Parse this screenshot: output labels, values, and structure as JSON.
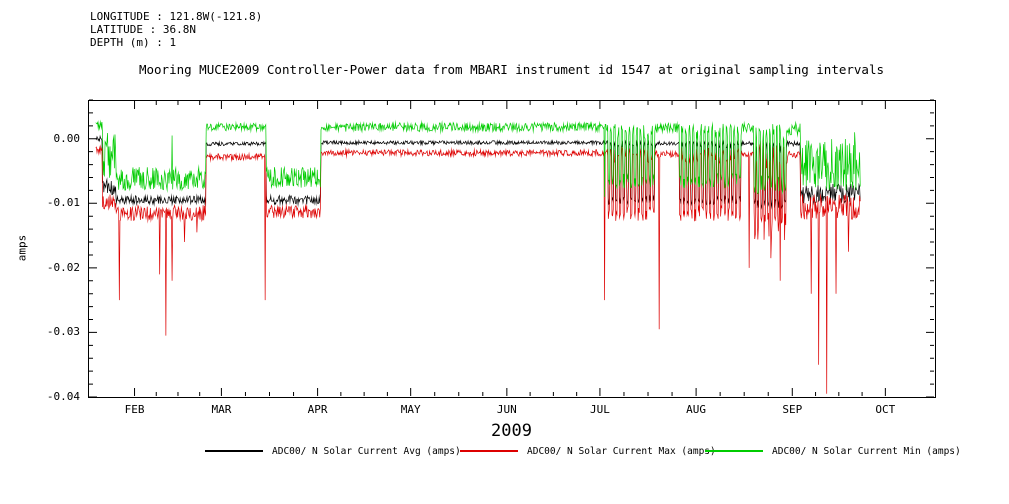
{
  "meta": {
    "lines": [
      "LONGITUDE : 121.8W(-121.8)",
      "LATITUDE : 36.8N",
      "DEPTH (m) : 1"
    ]
  },
  "chart_data": {
    "type": "line",
    "title": "Mooring MUCE2009 Controller-Power data from MBARI instrument id 1547 at original sampling intervals",
    "ylabel": "amps",
    "year_label": "2009",
    "x_axis": {
      "unit": "day of year 2009",
      "range": [
        17,
        290
      ],
      "month_ticks": [
        {
          "day": 32,
          "label": "FEB"
        },
        {
          "day": 60,
          "label": "MAR"
        },
        {
          "day": 91,
          "label": "APR"
        },
        {
          "day": 121,
          "label": "MAY"
        },
        {
          "day": 152,
          "label": "JUN"
        },
        {
          "day": 182,
          "label": "JUL"
        },
        {
          "day": 213,
          "label": "AUG"
        },
        {
          "day": 244,
          "label": "SEP"
        },
        {
          "day": 274,
          "label": "OCT"
        }
      ]
    },
    "y_axis": {
      "range": [
        -0.04,
        0.006
      ],
      "ticks": [
        {
          "value": 0,
          "label": "0.00"
        },
        {
          "value": -0.01,
          "label": "-0.01"
        },
        {
          "value": -0.02,
          "label": "-0.02"
        },
        {
          "value": -0.03,
          "label": "-0.03"
        },
        {
          "value": -0.04,
          "label": "-0.04"
        }
      ],
      "minor_step": 0.002
    },
    "series": [
      {
        "key": "avg",
        "name": "ADC00/ N Solar Current Avg (amps)",
        "color": "#000000"
      },
      {
        "key": "max",
        "name": "ADC00/ N Solar Current Max (amps)",
        "color": "#dd0000"
      },
      {
        "key": "min",
        "name": "ADC00/ N Solar Current Min (amps)",
        "color": "#00cc00"
      }
    ],
    "draw_order": [
      "avg",
      "max",
      "min"
    ],
    "sample_dt": 0.2,
    "data_t_range": [
      19.5,
      266
    ],
    "noise_seed": 2009,
    "segments": [
      {
        "t0": 19.5,
        "t1": 21.5,
        "mode": "steady",
        "avg": {
          "base": 0.0,
          "noise": 0.0004
        },
        "max": {
          "base": -0.0018,
          "noise": 0.0006
        },
        "min": {
          "base": 0.0018,
          "noise": 0.0008
        }
      },
      {
        "t0": 21.5,
        "t1": 26,
        "mode": "steady",
        "avg": {
          "base": -0.0075,
          "noise": 0.0012
        },
        "max": {
          "base": -0.0098,
          "noise": 0.0012
        },
        "min": {
          "base": -0.003,
          "noise": 0.004
        }
      },
      {
        "t0": 26,
        "t1": 55,
        "mode": "steady",
        "avg": {
          "base": -0.0095,
          "noise": 0.0007
        },
        "max": {
          "base": -0.0115,
          "noise": 0.0012
        },
        "min": {
          "base": -0.0062,
          "noise": 0.0018
        }
      },
      {
        "t0": 55,
        "t1": 74.5,
        "mode": "steady",
        "avg": {
          "base": -0.0008,
          "noise": 0.0003
        },
        "max": {
          "base": -0.0028,
          "noise": 0.0005
        },
        "min": {
          "base": 0.0018,
          "noise": 0.0006
        }
      },
      {
        "t0": 74.5,
        "t1": 92,
        "mode": "steady",
        "avg": {
          "base": -0.0095,
          "noise": 0.0007
        },
        "max": {
          "base": -0.0113,
          "noise": 0.001
        },
        "min": {
          "base": -0.006,
          "noise": 0.0016
        }
      },
      {
        "t0": 92,
        "t1": 184.5,
        "mode": "steady",
        "avg": {
          "base": -0.0006,
          "noise": 0.0003
        },
        "max": {
          "base": -0.0022,
          "noise": 0.0005
        },
        "min": {
          "base": 0.0018,
          "noise": 0.0007
        }
      },
      {
        "t0": 184.5,
        "t1": 200,
        "mode": "oscillate",
        "period": 1.2,
        "avg": {
          "hi": -0.0008,
          "lo": -0.0096,
          "noise": 0.0006
        },
        "max": {
          "hi": -0.0026,
          "lo": -0.0116,
          "noise": 0.0012
        },
        "min": {
          "hi": 0.0012,
          "lo": -0.0066,
          "noise": 0.0012
        }
      },
      {
        "t0": 200,
        "t1": 207.5,
        "mode": "steady",
        "avg": {
          "base": -0.0007,
          "noise": 0.0003
        },
        "max": {
          "base": -0.0024,
          "noise": 0.0005
        },
        "min": {
          "base": 0.0017,
          "noise": 0.0007
        }
      },
      {
        "t0": 207.5,
        "t1": 227.5,
        "mode": "oscillate",
        "period": 1.2,
        "avg": {
          "hi": -0.0008,
          "lo": -0.0096,
          "noise": 0.0006
        },
        "max": {
          "hi": -0.0026,
          "lo": -0.0116,
          "noise": 0.0012
        },
        "min": {
          "hi": 0.0012,
          "lo": -0.0066,
          "noise": 0.0012
        }
      },
      {
        "t0": 227.5,
        "t1": 231.5,
        "mode": "steady",
        "avg": {
          "base": -0.0007,
          "noise": 0.0003
        },
        "max": {
          "base": -0.0024,
          "noise": 0.0005
        },
        "min": {
          "base": 0.0017,
          "noise": 0.0007
        }
      },
      {
        "t0": 231.5,
        "t1": 242.5,
        "mode": "oscillate",
        "period": 1.1,
        "avg": {
          "hi": -0.001,
          "lo": -0.01,
          "noise": 0.0008
        },
        "max": {
          "hi": -0.0028,
          "lo": -0.0135,
          "noise": 0.0022
        },
        "min": {
          "hi": 0.001,
          "lo": -0.007,
          "noise": 0.0015
        }
      },
      {
        "t0": 242.5,
        "t1": 246.5,
        "mode": "steady",
        "avg": {
          "base": -0.0008,
          "noise": 0.0004
        },
        "max": {
          "base": -0.0025,
          "noise": 0.0006
        },
        "min": {
          "base": 0.0015,
          "noise": 0.001
        }
      },
      {
        "t0": 246.5,
        "t1": 266,
        "mode": "steady",
        "avg": {
          "base": -0.0085,
          "noise": 0.0015
        },
        "max": {
          "base": -0.0105,
          "noise": 0.002
        },
        "min": {
          "base": -0.004,
          "noise": 0.004
        }
      }
    ],
    "spikes": [
      {
        "t": 27,
        "series": "max",
        "value": -0.025
      },
      {
        "t": 40,
        "series": "max",
        "value": -0.021
      },
      {
        "t": 42,
        "series": "max",
        "value": -0.0305
      },
      {
        "t": 44,
        "series": "min",
        "value": 0.0005
      },
      {
        "t": 44,
        "series": "max",
        "value": -0.022
      },
      {
        "t": 48,
        "series": "max",
        "value": -0.016
      },
      {
        "t": 52,
        "series": "max",
        "value": -0.0145
      },
      {
        "t": 74,
        "series": "max",
        "value": -0.025
      },
      {
        "t": 183.5,
        "series": "max",
        "value": -0.025
      },
      {
        "t": 183.5,
        "series": "min",
        "value": -0.009
      },
      {
        "t": 201,
        "series": "max",
        "value": -0.0295
      },
      {
        "t": 230,
        "series": "max",
        "value": -0.02
      },
      {
        "t": 237,
        "series": "max",
        "value": -0.0185
      },
      {
        "t": 240,
        "series": "max",
        "value": -0.022
      },
      {
        "t": 250,
        "series": "max",
        "value": -0.024
      },
      {
        "t": 252.5,
        "series": "max",
        "value": -0.035
      },
      {
        "t": 255,
        "series": "max",
        "value": -0.0395
      },
      {
        "t": 258,
        "series": "max",
        "value": -0.024
      },
      {
        "t": 262,
        "series": "max",
        "value": -0.0175
      },
      {
        "t": 264,
        "series": "min",
        "value": 0.001
      }
    ]
  }
}
